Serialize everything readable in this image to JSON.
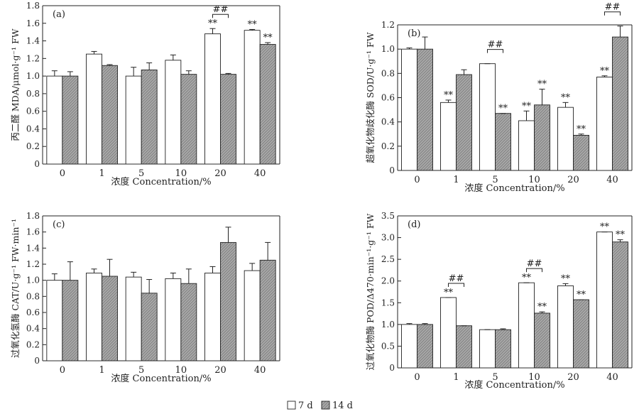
{
  "chart_data": [
    {
      "type": "bar",
      "panel": "(a)",
      "categories": [
        "0",
        "1",
        "5",
        "10",
        "20",
        "40"
      ],
      "xlabel": "浓度 Concentration/%",
      "ylabel": "丙二醛 MDA/μmol·g⁻¹ FW",
      "ylim": [
        0,
        1.8
      ],
      "yticks": [
        "0",
        "0.2",
        "0.4",
        "0.6",
        "0.8",
        "1.0",
        "1.2",
        "1.4",
        "1.6",
        "1.8"
      ],
      "series": [
        {
          "name": "7 d",
          "values": [
            1.0,
            1.25,
            1.0,
            1.18,
            1.48,
            1.52
          ],
          "errors": [
            0.06,
            0.03,
            0.1,
            0.06,
            0.06,
            0.01
          ]
        },
        {
          "name": "14 d",
          "values": [
            1.0,
            1.12,
            1.07,
            1.02,
            1.02,
            1.36
          ],
          "errors": [
            0.05,
            0.01,
            0.08,
            0.04,
            0.01,
            0.02
          ]
        }
      ],
      "sig_7d": [
        "",
        "",
        "",
        "",
        "**",
        "**"
      ],
      "sig_14d": [
        "",
        "",
        "",
        "",
        "",
        "**"
      ],
      "brackets": [
        {
          "category": 4,
          "label": "##"
        }
      ]
    },
    {
      "type": "bar",
      "panel": "(b)",
      "categories": [
        "0",
        "1",
        "5",
        "10",
        "20",
        "40"
      ],
      "xlabel": "浓度 Concentration/%",
      "ylabel": "超氧化物歧化酶 SOD/U·g⁻¹ FW",
      "ylim": [
        0,
        1.2
      ],
      "yticks": [
        "0",
        "0.2",
        "0.4",
        "0.6",
        "0.8",
        "1.0",
        "1.2"
      ],
      "series": [
        {
          "name": "7 d",
          "values": [
            1.0,
            0.56,
            0.88,
            0.41,
            0.52,
            0.77
          ],
          "errors": [
            0.01,
            0.02,
            0.0,
            0.08,
            0.04,
            0.01
          ]
        },
        {
          "name": "14 d",
          "values": [
            1.0,
            0.79,
            0.47,
            0.54,
            0.29,
            1.1
          ],
          "errors": [
            0.1,
            0.04,
            0.0,
            0.13,
            0.01,
            0.09
          ]
        }
      ],
      "sig_7d": [
        "",
        "**",
        "",
        "**",
        "**",
        "**"
      ],
      "sig_14d": [
        "",
        "",
        "**",
        "**",
        "**",
        ""
      ],
      "brackets": [
        {
          "category": 2,
          "label": "##"
        },
        {
          "category": 5,
          "label": "##"
        }
      ]
    },
    {
      "type": "bar",
      "panel": "(c)",
      "categories": [
        "0",
        "1",
        "5",
        "10",
        "20",
        "40"
      ],
      "xlabel": "浓度 Concentration/%",
      "ylabel": "过氧化氢酶 CAT/U·g⁻¹ FW·min⁻¹",
      "ylim": [
        0,
        1.8
      ],
      "yticks": [
        "0",
        "0.2",
        "0.4",
        "0.6",
        "0.8",
        "1.0",
        "1.2",
        "1.4",
        "1.6",
        "1.8"
      ],
      "series": [
        {
          "name": "7 d",
          "values": [
            1.0,
            1.09,
            1.04,
            1.02,
            1.09,
            1.12
          ],
          "errors": [
            0.08,
            0.05,
            0.06,
            0.07,
            0.08,
            0.09
          ]
        },
        {
          "name": "14 d",
          "values": [
            1.0,
            1.05,
            0.84,
            0.96,
            1.47,
            1.25
          ],
          "errors": [
            0.23,
            0.21,
            0.17,
            0.18,
            0.19,
            0.22
          ]
        }
      ],
      "sig_7d": [
        "",
        "",
        "",
        "",
        "",
        ""
      ],
      "sig_14d": [
        "",
        "",
        "",
        "",
        "",
        ""
      ],
      "brackets": []
    },
    {
      "type": "bar",
      "panel": "(d)",
      "categories": [
        "0",
        "1",
        "5",
        "10",
        "20",
        "40"
      ],
      "xlabel": "浓度 Concentration/%",
      "ylabel": "过氧化物酶 POD/Δ470·min⁻¹·g⁻¹ FW",
      "ylim": [
        0,
        3.5
      ],
      "yticks": [
        "0",
        "0.5",
        "1.0",
        "1.5",
        "2.0",
        "2.5",
        "3.0",
        "3.5"
      ],
      "series": [
        {
          "name": "7 d",
          "values": [
            1.0,
            1.62,
            0.88,
            1.96,
            1.89,
            3.13
          ],
          "errors": [
            0.02,
            0.0,
            0.0,
            0.0,
            0.05,
            0.0
          ]
        },
        {
          "name": "14 d",
          "values": [
            1.0,
            0.97,
            0.88,
            1.26,
            1.57,
            2.9
          ],
          "errors": [
            0.02,
            0.0,
            0.02,
            0.03,
            0.0,
            0.05
          ]
        }
      ],
      "sig_7d": [
        "",
        "**",
        "",
        "**",
        "**",
        "**"
      ],
      "sig_14d": [
        "",
        "",
        "",
        "**",
        "**",
        "**"
      ],
      "brackets": [
        {
          "category": 1,
          "label": "##"
        },
        {
          "category": 3,
          "label": "##"
        }
      ]
    }
  ],
  "legend": {
    "items": [
      {
        "label": "7 d",
        "fill": "#ffffff"
      },
      {
        "label": "14 d",
        "fill": "#a8a8a8"
      }
    ],
    "placement": "bottom-center"
  }
}
